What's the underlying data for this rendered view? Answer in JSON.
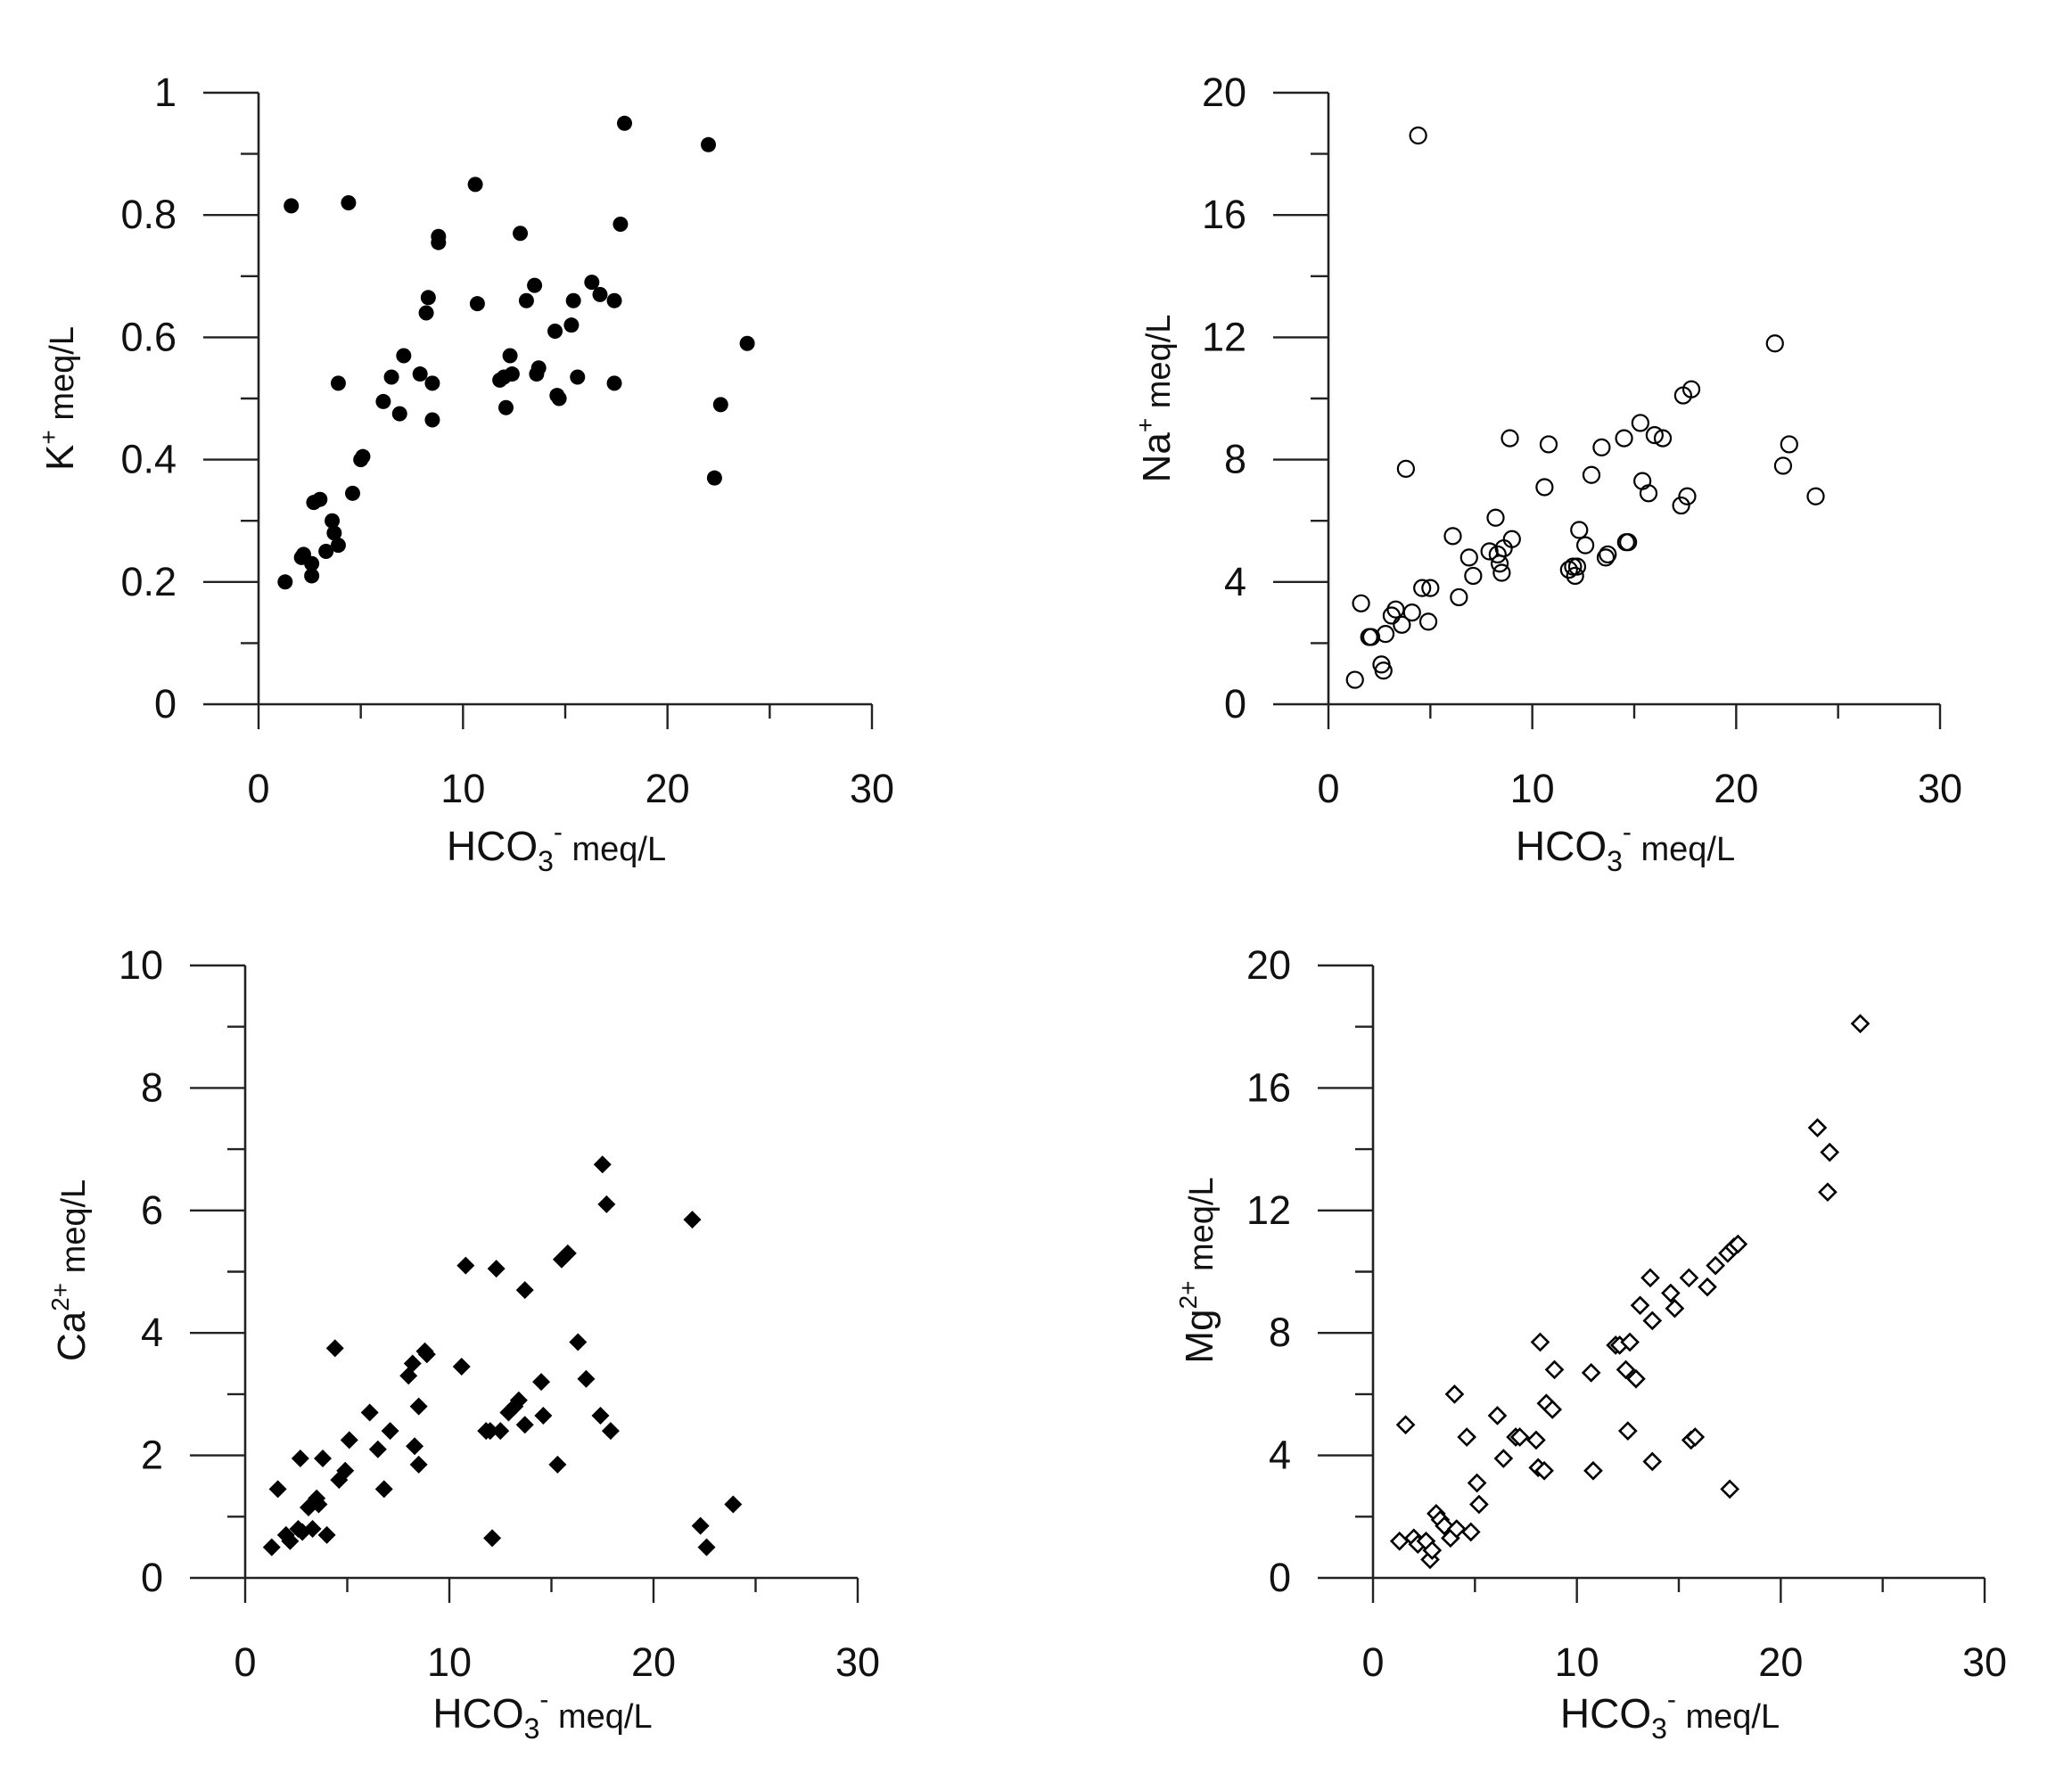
{
  "chart_data": [
    {
      "type": "scatter",
      "ylabel": "K+ meq/L",
      "ylabel_main": "K",
      "ylabel_sup": "+",
      "ylabel_rest": " meq/L",
      "xlabel": "HCO3- meq/L",
      "xlabel_main": "HCO",
      "xlabel_sub": "3",
      "xlabel_sup": "-",
      "xlabel_rest": " meq/L",
      "xlim": [
        0,
        30
      ],
      "ylim": [
        0,
        1
      ],
      "x_ticks": [
        "0",
        "10",
        "20",
        "30"
      ],
      "y_ticks": [
        "0",
        "0.2",
        "0.4",
        "0.6",
        "0.8",
        "1"
      ],
      "marker": "filled-circle",
      "points": [
        [
          1.3,
          0.2
        ],
        [
          1.6,
          0.815
        ],
        [
          2.1,
          0.24
        ],
        [
          2.2,
          0.245
        ],
        [
          2.6,
          0.21
        ],
        [
          2.6,
          0.23
        ],
        [
          2.7,
          0.33
        ],
        [
          3.0,
          0.335
        ],
        [
          3.3,
          0.25
        ],
        [
          3.6,
          0.3
        ],
        [
          3.7,
          0.28
        ],
        [
          3.9,
          0.26
        ],
        [
          3.9,
          0.525
        ],
        [
          4.4,
          0.82
        ],
        [
          4.6,
          0.345
        ],
        [
          5.0,
          0.4
        ],
        [
          5.1,
          0.405
        ],
        [
          6.1,
          0.495
        ],
        [
          6.5,
          0.535
        ],
        [
          6.9,
          0.475
        ],
        [
          7.1,
          0.57
        ],
        [
          7.9,
          0.54
        ],
        [
          8.2,
          0.64
        ],
        [
          8.3,
          0.665
        ],
        [
          8.5,
          0.465
        ],
        [
          8.5,
          0.525
        ],
        [
          8.8,
          0.755
        ],
        [
          8.8,
          0.765
        ],
        [
          10.6,
          0.85
        ],
        [
          10.7,
          0.655
        ],
        [
          11.8,
          0.53
        ],
        [
          12.0,
          0.535
        ],
        [
          12.1,
          0.485
        ],
        [
          12.3,
          0.57
        ],
        [
          12.4,
          0.54
        ],
        [
          12.8,
          0.77
        ],
        [
          13.1,
          0.66
        ],
        [
          13.5,
          0.685
        ],
        [
          13.6,
          0.54
        ],
        [
          13.7,
          0.55
        ],
        [
          14.5,
          0.61
        ],
        [
          14.6,
          0.505
        ],
        [
          14.7,
          0.5
        ],
        [
          15.3,
          0.62
        ],
        [
          15.4,
          0.66
        ],
        [
          15.6,
          0.535
        ],
        [
          16.3,
          0.69
        ],
        [
          16.7,
          0.67
        ],
        [
          17.4,
          0.525
        ],
        [
          17.4,
          0.66
        ],
        [
          17.7,
          0.785
        ],
        [
          17.9,
          0.95
        ],
        [
          22.0,
          0.915
        ],
        [
          22.3,
          0.37
        ],
        [
          22.6,
          0.49
        ],
        [
          23.9,
          0.59
        ]
      ]
    },
    {
      "type": "scatter",
      "ylabel": "Na+ meq/L",
      "ylabel_main": "Na",
      "ylabel_sup": "+",
      "ylabel_rest": " meq/L",
      "xlabel": "HCO3- meq/L",
      "xlabel_main": "HCO",
      "xlabel_sub": "3",
      "xlabel_sup": "-",
      "xlabel_rest": " meq/L",
      "xlim": [
        0,
        30
      ],
      "ylim": [
        0,
        20
      ],
      "x_ticks": [
        "0",
        "10",
        "20",
        "30"
      ],
      "y_ticks": [
        "0",
        "4",
        "8",
        "12",
        "16",
        "20"
      ],
      "marker": "open-circle",
      "points": [
        [
          1.3,
          0.8
        ],
        [
          1.6,
          3.3
        ],
        [
          2.0,
          2.2
        ],
        [
          2.1,
          2.2
        ],
        [
          2.6,
          1.3
        ],
        [
          2.7,
          1.1
        ],
        [
          2.8,
          2.3
        ],
        [
          3.1,
          2.9
        ],
        [
          3.3,
          3.1
        ],
        [
          3.6,
          2.6
        ],
        [
          3.8,
          7.7
        ],
        [
          4.1,
          3.0
        ],
        [
          4.4,
          18.6
        ],
        [
          4.6,
          3.8
        ],
        [
          4.9,
          2.7
        ],
        [
          5.0,
          3.8
        ],
        [
          6.1,
          5.5
        ],
        [
          6.4,
          3.5
        ],
        [
          6.9,
          4.8
        ],
        [
          7.1,
          4.2
        ],
        [
          7.9,
          5.0
        ],
        [
          8.2,
          6.1
        ],
        [
          8.3,
          4.9
        ],
        [
          8.4,
          4.6
        ],
        [
          8.5,
          4.3
        ],
        [
          8.6,
          5.1
        ],
        [
          8.9,
          8.7
        ],
        [
          9.0,
          5.4
        ],
        [
          10.6,
          7.1
        ],
        [
          10.8,
          8.5
        ],
        [
          11.8,
          4.4
        ],
        [
          12.0,
          4.5
        ],
        [
          12.1,
          4.2
        ],
        [
          12.2,
          4.5
        ],
        [
          12.3,
          5.7
        ],
        [
          12.6,
          5.2
        ],
        [
          12.9,
          7.5
        ],
        [
          13.4,
          8.4
        ],
        [
          13.6,
          4.8
        ],
        [
          13.7,
          4.9
        ],
        [
          14.5,
          8.7
        ],
        [
          14.6,
          5.3
        ],
        [
          14.7,
          5.3
        ],
        [
          15.3,
          9.2
        ],
        [
          15.4,
          7.3
        ],
        [
          15.7,
          6.9
        ],
        [
          16.0,
          8.8
        ],
        [
          16.4,
          8.7
        ],
        [
          17.3,
          6.5
        ],
        [
          17.4,
          10.1
        ],
        [
          17.6,
          6.8
        ],
        [
          17.8,
          10.3
        ],
        [
          21.9,
          11.8
        ],
        [
          22.3,
          7.8
        ],
        [
          22.6,
          8.5
        ],
        [
          23.9,
          6.8
        ]
      ]
    },
    {
      "type": "scatter",
      "ylabel": "Ca2+ meq/L",
      "ylabel_main": "Ca",
      "ylabel_sup": "2+",
      "ylabel_rest": " meq/L",
      "xlabel": "HCO3- meq/L",
      "xlabel_main": "HCO",
      "xlabel_sub": "3",
      "xlabel_sup": "-",
      "xlabel_rest": " meq/L",
      "xlim": [
        0,
        30
      ],
      "ylim": [
        0,
        10
      ],
      "x_ticks": [
        "0",
        "10",
        "20",
        "30"
      ],
      "y_ticks": [
        "0",
        "2",
        "4",
        "6",
        "8",
        "10"
      ],
      "marker": "filled-diamond",
      "points": [
        [
          1.3,
          0.5
        ],
        [
          1.6,
          1.45
        ],
        [
          2.0,
          0.7
        ],
        [
          2.2,
          0.6
        ],
        [
          2.6,
          0.8
        ],
        [
          2.7,
          1.95
        ],
        [
          2.8,
          0.75
        ],
        [
          3.1,
          1.15
        ],
        [
          3.3,
          0.8
        ],
        [
          3.5,
          1.3
        ],
        [
          3.6,
          1.2
        ],
        [
          3.8,
          1.95
        ],
        [
          4.0,
          0.7
        ],
        [
          4.4,
          3.75
        ],
        [
          4.6,
          1.6
        ],
        [
          4.9,
          1.75
        ],
        [
          5.1,
          2.25
        ],
        [
          6.1,
          2.7
        ],
        [
          6.5,
          2.1
        ],
        [
          6.8,
          1.45
        ],
        [
          7.1,
          2.4
        ],
        [
          8.0,
          3.3
        ],
        [
          8.2,
          3.5
        ],
        [
          8.3,
          2.15
        ],
        [
          8.5,
          1.85
        ],
        [
          8.5,
          2.8
        ],
        [
          8.8,
          3.7
        ],
        [
          8.9,
          3.65
        ],
        [
          10.6,
          3.45
        ],
        [
          10.8,
          5.1
        ],
        [
          11.8,
          2.4
        ],
        [
          12.0,
          2.4
        ],
        [
          12.1,
          0.65
        ],
        [
          12.3,
          5.05
        ],
        [
          12.5,
          2.4
        ],
        [
          12.9,
          2.7
        ],
        [
          13.2,
          2.8
        ],
        [
          13.4,
          2.9
        ],
        [
          13.7,
          2.5
        ],
        [
          13.7,
          4.7
        ],
        [
          14.5,
          3.2
        ],
        [
          14.6,
          2.65
        ],
        [
          15.3,
          1.85
        ],
        [
          15.5,
          5.2
        ],
        [
          15.8,
          5.3
        ],
        [
          16.3,
          3.85
        ],
        [
          16.7,
          3.25
        ],
        [
          17.4,
          2.65
        ],
        [
          17.5,
          6.75
        ],
        [
          17.7,
          6.1
        ],
        [
          17.9,
          2.4
        ],
        [
          21.9,
          5.85
        ],
        [
          22.3,
          0.85
        ],
        [
          22.6,
          0.5
        ],
        [
          23.9,
          1.2
        ]
      ]
    },
    {
      "type": "scatter",
      "ylabel": "Mg2+ meq/L",
      "ylabel_main": "Mg",
      "ylabel_sup": "2+",
      "ylabel_rest": " meq/L",
      "xlabel": "HCO3- meq/L",
      "xlabel_main": "HCO",
      "xlabel_sub": "3",
      "xlabel_sup": "-",
      "xlabel_rest": " meq/L",
      "xlim": [
        0,
        30
      ],
      "ylim": [
        0,
        20
      ],
      "x_ticks": [
        "0",
        "10",
        "20",
        "30"
      ],
      "y_ticks": [
        "0",
        "4",
        "8",
        "12",
        "16",
        "20"
      ],
      "marker": "open-diamond",
      "points": [
        [
          1.3,
          1.2
        ],
        [
          1.6,
          5.0
        ],
        [
          2.0,
          1.3
        ],
        [
          2.2,
          1.1
        ],
        [
          2.6,
          1.2
        ],
        [
          2.8,
          0.6
        ],
        [
          2.9,
          0.9
        ],
        [
          3.1,
          2.1
        ],
        [
          3.3,
          1.9
        ],
        [
          3.5,
          1.7
        ],
        [
          3.8,
          1.3
        ],
        [
          4.0,
          6.0
        ],
        [
          4.1,
          1.6
        ],
        [
          4.6,
          4.6
        ],
        [
          4.8,
          1.5
        ],
        [
          5.1,
          3.1
        ],
        [
          5.2,
          2.4
        ],
        [
          6.1,
          5.3
        ],
        [
          6.4,
          3.9
        ],
        [
          7.0,
          4.6
        ],
        [
          7.2,
          4.6
        ],
        [
          8.0,
          4.5
        ],
        [
          8.1,
          3.6
        ],
        [
          8.2,
          7.7
        ],
        [
          8.4,
          3.5
        ],
        [
          8.5,
          5.7
        ],
        [
          8.8,
          5.5
        ],
        [
          8.9,
          6.8
        ],
        [
          10.7,
          6.7
        ],
        [
          10.8,
          3.5
        ],
        [
          11.9,
          7.6
        ],
        [
          12.1,
          7.6
        ],
        [
          12.4,
          6.8
        ],
        [
          12.5,
          4.8
        ],
        [
          12.6,
          7.7
        ],
        [
          12.9,
          6.5
        ],
        [
          13.1,
          8.9
        ],
        [
          13.6,
          9.8
        ],
        [
          13.7,
          8.4
        ],
        [
          13.7,
          3.8
        ],
        [
          14.6,
          9.3
        ],
        [
          14.8,
          8.8
        ],
        [
          15.5,
          9.8
        ],
        [
          15.6,
          4.5
        ],
        [
          15.8,
          4.6
        ],
        [
          16.4,
          9.5
        ],
        [
          16.8,
          10.2
        ],
        [
          17.4,
          10.6
        ],
        [
          17.5,
          2.9
        ],
        [
          17.7,
          10.8
        ],
        [
          17.9,
          10.9
        ],
        [
          21.8,
          14.7
        ],
        [
          22.3,
          12.6
        ],
        [
          22.4,
          13.9
        ],
        [
          23.9,
          18.1
        ]
      ]
    }
  ]
}
